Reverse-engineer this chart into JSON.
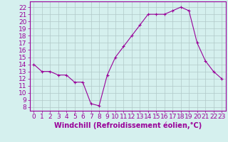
{
  "x": [
    0,
    1,
    2,
    3,
    4,
    5,
    6,
    7,
    8,
    9,
    10,
    11,
    12,
    13,
    14,
    15,
    16,
    17,
    18,
    19,
    20,
    21,
    22,
    23
  ],
  "y": [
    14,
    13,
    13,
    12.5,
    12.5,
    11.5,
    11.5,
    8.5,
    8.2,
    12.5,
    15,
    16.5,
    18,
    19.5,
    21,
    21,
    21,
    21.5,
    22,
    21.5,
    17,
    14.5,
    13,
    12
  ],
  "line_color": "#990099",
  "marker": "+",
  "bg_color": "#d5f0ee",
  "grid_color": "#b0c8c8",
  "xlabel": "Windchill (Refroidissement éolien,°C)",
  "yticks": [
    8,
    9,
    10,
    11,
    12,
    13,
    14,
    15,
    16,
    17,
    18,
    19,
    20,
    21,
    22
  ],
  "xlim": [
    -0.5,
    23.5
  ],
  "ylim": [
    7.5,
    22.8
  ],
  "xlabel_fontsize": 7,
  "tick_fontsize": 6.5
}
